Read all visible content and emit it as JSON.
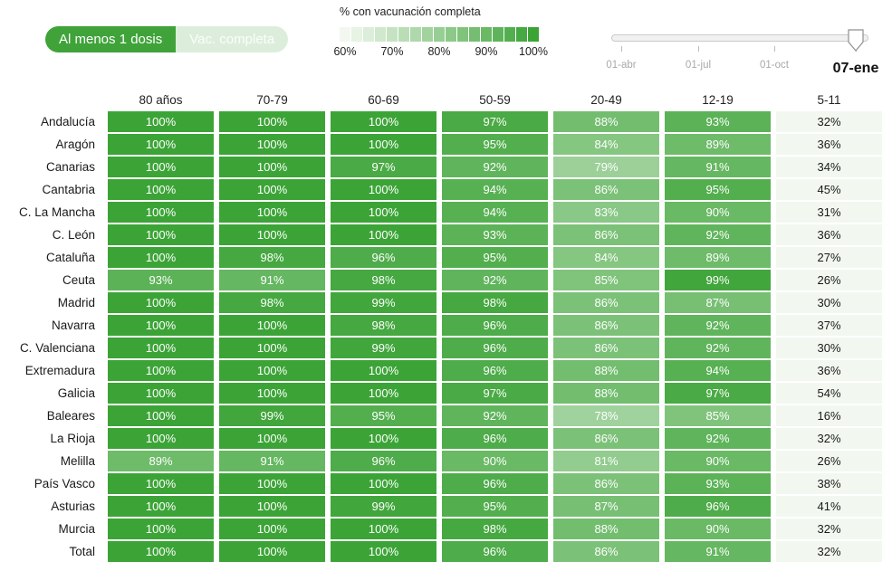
{
  "toggle": {
    "at_least_one_dose": "Al menos 1 dosis",
    "full_vaccination": "Vac. completa"
  },
  "legend": {
    "title": "% con vacunación completa",
    "tick_labels": [
      "60%",
      "70%",
      "80%",
      "90%",
      "100%"
    ],
    "steps": 17
  },
  "timeline": {
    "tick_labels": [
      "01-abr",
      "01-jul",
      "01-oct"
    ],
    "selected_date": "07-ene"
  },
  "chart_data": {
    "type": "heatmap",
    "title": "% con vacunación completa",
    "legend_position": "top",
    "columns": [
      "80 años",
      "70-79",
      "60-69",
      "50-59",
      "20-49",
      "12-19",
      "5-11"
    ],
    "rows": [
      "Andalucía",
      "Aragón",
      "Canarias",
      "Cantabria",
      "C. La Mancha",
      "C. León",
      "Cataluña",
      "Ceuta",
      "Madrid",
      "Navarra",
      "C. Valenciana",
      "Extremadura",
      "Galicia",
      "Baleares",
      "La Rioja",
      "Melilla",
      "País Vasco",
      "Asturias",
      "Murcia",
      "Total"
    ],
    "values_percent": [
      [
        100,
        100,
        100,
        97,
        88,
        93,
        32
      ],
      [
        100,
        100,
        100,
        95,
        84,
        89,
        36
      ],
      [
        100,
        100,
        97,
        92,
        79,
        91,
        34
      ],
      [
        100,
        100,
        100,
        94,
        86,
        95,
        45
      ],
      [
        100,
        100,
        100,
        94,
        83,
        90,
        31
      ],
      [
        100,
        100,
        100,
        93,
        86,
        92,
        36
      ],
      [
        100,
        98,
        96,
        95,
        84,
        89,
        27
      ],
      [
        93,
        91,
        98,
        92,
        85,
        99,
        26
      ],
      [
        100,
        98,
        99,
        98,
        86,
        87,
        30
      ],
      [
        100,
        100,
        98,
        96,
        86,
        92,
        37
      ],
      [
        100,
        100,
        99,
        96,
        86,
        92,
        30
      ],
      [
        100,
        100,
        100,
        96,
        88,
        94,
        36
      ],
      [
        100,
        100,
        100,
        97,
        88,
        97,
        54
      ],
      [
        100,
        99,
        95,
        92,
        78,
        85,
        16
      ],
      [
        100,
        100,
        100,
        96,
        86,
        92,
        32
      ],
      [
        89,
        91,
        96,
        90,
        81,
        90,
        26
      ],
      [
        100,
        100,
        100,
        96,
        86,
        93,
        38
      ],
      [
        100,
        100,
        99,
        95,
        87,
        96,
        41
      ],
      [
        100,
        100,
        100,
        98,
        88,
        90,
        32
      ],
      [
        100,
        100,
        100,
        96,
        86,
        91,
        32
      ]
    ],
    "color_scale": {
      "min": 60,
      "max": 100,
      "min_color": "#f2f8f0",
      "max_color": "#3ca437",
      "white_text_threshold": 70
    }
  }
}
